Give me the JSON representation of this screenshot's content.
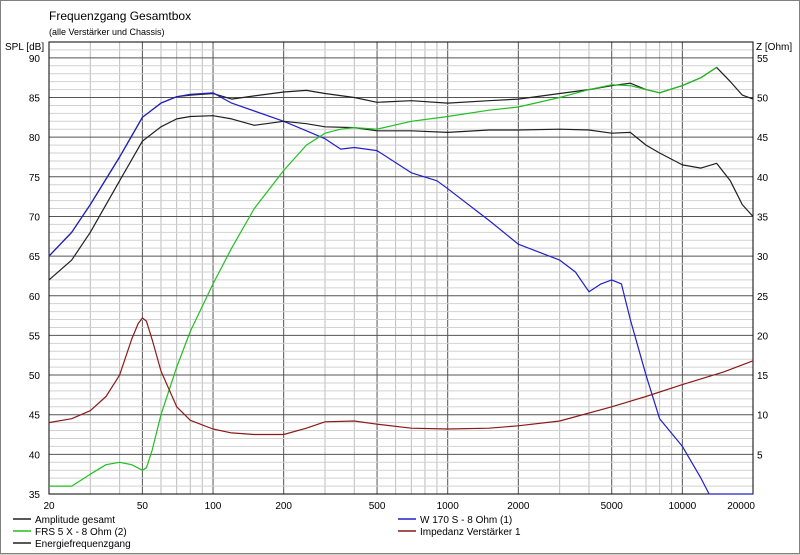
{
  "chart_data": {
    "type": "line",
    "title": "Frequenzgang Gesamtbox",
    "subtitle": "(alle Verstärker und Chassis)",
    "ylabel": "SPL [dB]",
    "y2label": "Z [Ohm]",
    "xscale": "log",
    "xlim": [
      20,
      20000
    ],
    "ylim": [
      35,
      92
    ],
    "y2lim": [
      0,
      57
    ],
    "grid": true,
    "legend_position": "bottom",
    "x_ticks": [
      "20",
      "50",
      "100",
      "200",
      "500",
      "1000",
      "2000",
      "5000",
      "10000",
      "20000"
    ],
    "y_ticks": [
      "35",
      "40",
      "45",
      "50",
      "55",
      "60",
      "65",
      "70",
      "75",
      "80",
      "85",
      "90"
    ],
    "y2_ticks": [
      "5",
      "10",
      "15",
      "20",
      "25",
      "30",
      "35",
      "40",
      "45",
      "50",
      "55"
    ],
    "series": [
      {
        "name": "Amplitude gesamt",
        "color": "#202020",
        "axis": "left",
        "x": [
          20,
          25,
          30,
          40,
          50,
          60,
          70,
          80,
          100,
          120,
          150,
          200,
          250,
          300,
          400,
          500,
          700,
          1000,
          1500,
          2000,
          3000,
          4000,
          5000,
          6000,
          7000,
          8000,
          10000,
          12000,
          14000,
          16000,
          18000,
          20000
        ],
        "y": [
          65,
          68,
          71.5,
          77.5,
          82.5,
          84.3,
          85.1,
          85.3,
          85.5,
          84.8,
          85.2,
          85.7,
          85.9,
          85.5,
          85,
          84.4,
          84.6,
          84.3,
          84.6,
          84.8,
          85.5,
          86,
          86.5,
          86.8,
          86,
          85.6,
          86.5,
          87.5,
          88.8,
          87,
          85.3,
          84.8
        ]
      },
      {
        "name": "W 170 S - 8 Ohm (1)",
        "color": "#2020c8",
        "axis": "left",
        "x": [
          20,
          25,
          30,
          40,
          50,
          60,
          70,
          80,
          100,
          120,
          150,
          200,
          250,
          300,
          350,
          400,
          500,
          700,
          900,
          1000,
          1500,
          2000,
          3000,
          3500,
          4000,
          4500,
          5000,
          5500,
          6000,
          7000,
          8000,
          10000,
          12000,
          13000,
          15000,
          20000
        ],
        "y": [
          65,
          68,
          71.5,
          77.5,
          82.5,
          84.3,
          85.1,
          85.4,
          85.6,
          84.3,
          83.3,
          82,
          80.8,
          79.8,
          78.5,
          78.7,
          78.3,
          75.5,
          74.5,
          73.5,
          69.5,
          66.5,
          64.5,
          63,
          60.5,
          61.5,
          62,
          61.5,
          57,
          50,
          44.5,
          41,
          37,
          35,
          35,
          35
        ]
      },
      {
        "name": "Energiefrequenzgang",
        "color": "#202020",
        "axis": "left",
        "x": [
          20,
          25,
          30,
          40,
          50,
          60,
          70,
          80,
          100,
          120,
          150,
          200,
          250,
          300,
          400,
          500,
          700,
          1000,
          1500,
          2000,
          3000,
          4000,
          5000,
          6000,
          7000,
          8000,
          10000,
          12000,
          14000,
          16000,
          18000,
          20000
        ],
        "y": [
          62,
          64.5,
          68,
          74.5,
          79.5,
          81.3,
          82.3,
          82.6,
          82.7,
          82.3,
          81.5,
          82,
          81.7,
          81.3,
          81.2,
          80.8,
          80.8,
          80.6,
          80.9,
          80.9,
          81,
          80.9,
          80.5,
          80.6,
          79,
          78,
          76.5,
          76.1,
          76.7,
          74.5,
          71.5,
          70
        ]
      },
      {
        "name": "FRS 5 X - 8 Ohm (2)",
        "color": "#20c020",
        "axis": "left",
        "x": [
          20,
          25,
          30,
          35,
          40,
          45,
          50,
          52,
          55,
          60,
          70,
          80,
          100,
          120,
          150,
          200,
          250,
          300,
          350,
          400,
          500,
          700,
          1000,
          1500,
          2000,
          3000,
          4000,
          5000,
          6000,
          7000,
          8000,
          10000,
          12000,
          14000
        ],
        "y": [
          36,
          36,
          37.5,
          38.7,
          39,
          38.7,
          38,
          38.3,
          40.5,
          45,
          51,
          55.5,
          61.5,
          66,
          71,
          75.8,
          79,
          80.5,
          81,
          81.2,
          81,
          82,
          82.6,
          83.4,
          83.8,
          85,
          86,
          86.6,
          86.5,
          86,
          85.6,
          86.5,
          87.5,
          88.8
        ]
      },
      {
        "name": "Impedanz Verstärker 1",
        "color": "#8b1a1a",
        "axis": "right",
        "x": [
          20,
          25,
          30,
          35,
          40,
          45,
          48,
          50,
          52,
          55,
          60,
          70,
          80,
          100,
          120,
          150,
          200,
          250,
          300,
          400,
          500,
          700,
          1000,
          1500,
          2000,
          3000,
          5000,
          7000,
          10000,
          15000,
          20000
        ],
        "y": [
          9,
          9.5,
          10.5,
          12.3,
          15,
          19.5,
          21.5,
          22.2,
          21.8,
          19.5,
          15.5,
          11,
          9.3,
          8.2,
          7.7,
          7.5,
          7.5,
          8.3,
          9.1,
          9.2,
          8.8,
          8.3,
          8.2,
          8.3,
          8.6,
          9.2,
          11,
          12.3,
          13.8,
          15.4,
          16.8
        ]
      }
    ]
  }
}
